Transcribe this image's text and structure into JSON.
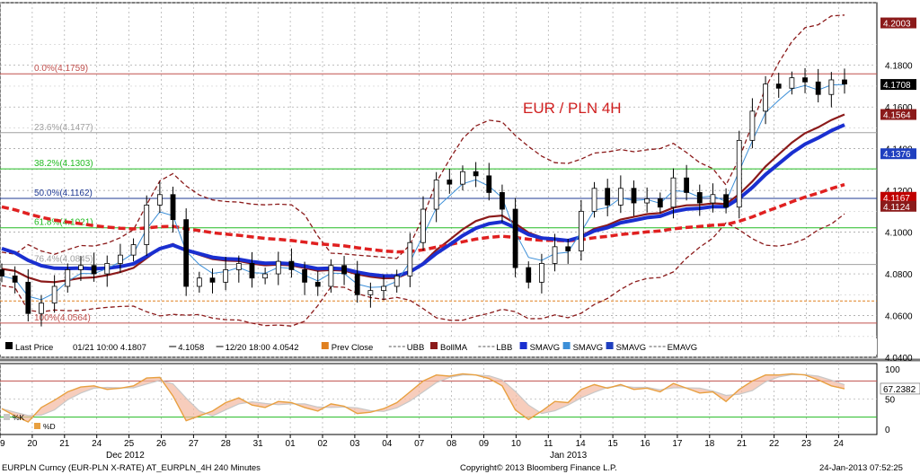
{
  "chart_data": {
    "type": "candlestick",
    "title": "EUR / PLN 4H",
    "ticker": "EURPLN Curncy (EUR-PLN X-RATE) AT_EURPLN_4H  240 Minutes",
    "copyright": "Copyright© 2013 Bloomberg Finance L.P.",
    "timestamp": "24-Jan-2013 07:52:25",
    "ylim": [
      4.04,
      4.21
    ],
    "y_ticks": [
      "4.1800",
      "4.1600",
      "4.1400",
      "4.1200",
      "4.1000",
      "4.0800",
      "4.0600",
      "4.0400"
    ],
    "date_labels": [
      "19",
      "20",
      "21",
      "24",
      "25",
      "26",
      "27",
      "28",
      "31",
      "01",
      "02",
      "03",
      "04",
      "07",
      "08",
      "09",
      "10",
      "11",
      "14",
      "15",
      "16",
      "17",
      "18",
      "21",
      "22",
      "23",
      "24"
    ],
    "month_labels": [
      "Dec 2012",
      "Jan 2013"
    ],
    "fibonacci": [
      {
        "label": "0.0%(4.1759)",
        "value": 4.1759,
        "color": "#c0504d"
      },
      {
        "label": "23.6%(4.1477)",
        "value": 4.1477,
        "color": "#a0a0a0"
      },
      {
        "label": "38.2%(4.1303)",
        "value": 4.1303,
        "color": "#22bb22"
      },
      {
        "label": "50.0%(4.1162)",
        "value": 4.1162,
        "color": "#1f3a93"
      },
      {
        "label": "61.8%(4.1021)",
        "value": 4.1021,
        "color": "#22bb22"
      },
      {
        "label": "76.4%(4.0845)",
        "value": 4.0845,
        "color": "#a0a0a0"
      },
      {
        "label": "100%(4.0564)",
        "value": 4.0564,
        "color": "#c0504d"
      }
    ],
    "price_labels": [
      {
        "text": "4.2003",
        "value": 4.2003,
        "bg": "#8b1a1a"
      },
      {
        "text": "4.1708",
        "value": 4.1708,
        "bg": "#000000"
      },
      {
        "text": "4.1564",
        "value": 4.1564,
        "bg": "#8b1a1a"
      },
      {
        "text": "4.1376",
        "value": 4.1376,
        "bg": "#1f3fbf"
      },
      {
        "text": "4.1167",
        "value": 4.1167,
        "bg": "#c00000"
      },
      {
        "text": "4.1124",
        "value": 4.1124,
        "bg": "#8b1a1a"
      }
    ],
    "legend": [
      {
        "icon": "black",
        "text": "Last Price"
      },
      {
        "icon": "none",
        "text": "01/21 10:00 4.1807"
      },
      {
        "icon": "cross",
        "text": "4.1058"
      },
      {
        "icon": "cross",
        "text": "12/20 18:00 4.0542"
      },
      {
        "icon": "orange",
        "text": "Prev Close"
      },
      {
        "icon": "dash",
        "text": "UBB"
      },
      {
        "icon": "darkred",
        "text": "BollMA"
      },
      {
        "icon": "dash",
        "text": "LBB"
      },
      {
        "icon": "blue",
        "text": "SMAVG"
      },
      {
        "icon": "lightblue",
        "text": "SMAVG"
      },
      {
        "icon": "navy",
        "text": "SMAVG"
      },
      {
        "icon": "dash",
        "text": "EMAVG"
      }
    ],
    "close": [
      4.079,
      4.076,
      4.061,
      4.066,
      4.074,
      4.082,
      4.084,
      4.08,
      4.085,
      4.089,
      4.094,
      4.113,
      4.118,
      4.106,
      4.074,
      4.078,
      4.076,
      4.082,
      4.085,
      4.078,
      4.08,
      4.086,
      4.082,
      4.076,
      4.074,
      4.084,
      4.08,
      4.07,
      4.072,
      4.074,
      4.079,
      4.095,
      4.111,
      4.125,
      4.123,
      4.129,
      4.127,
      4.119,
      4.111,
      4.083,
      4.076,
      4.085,
      4.093,
      4.091,
      4.11,
      4.121,
      4.113,
      4.121,
      4.114,
      4.116,
      4.112,
      4.126,
      4.119,
      4.114,
      4.118,
      4.112,
      4.144,
      4.158,
      4.171,
      4.169,
      4.174,
      4.172,
      4.166,
      4.173,
      4.171
    ],
    "oscillator": {
      "ylim": [
        0,
        100
      ],
      "y_ticks": [
        "100",
        "50",
        "0"
      ],
      "levels": [
        80,
        20
      ],
      "last_value": "67.2382",
      "k": [
        34,
        22,
        12,
        36,
        48,
        62,
        70,
        72,
        66,
        68,
        72,
        85,
        86,
        55,
        14,
        22,
        30,
        44,
        52,
        40,
        36,
        46,
        44,
        36,
        30,
        42,
        38,
        26,
        28,
        34,
        44,
        62,
        80,
        90,
        88,
        92,
        90,
        84,
        72,
        32,
        16,
        30,
        46,
        44,
        66,
        74,
        68,
        74,
        66,
        68,
        62,
        76,
        68,
        60,
        62,
        46,
        66,
        80,
        90,
        90,
        92,
        90,
        82,
        72,
        67
      ],
      "legend": [
        "%K",
        "%D"
      ]
    }
  }
}
